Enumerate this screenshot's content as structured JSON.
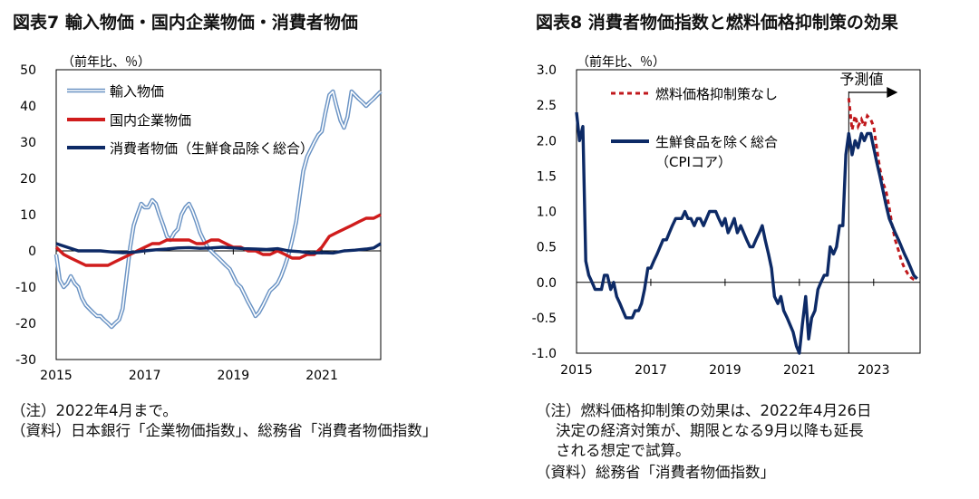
{
  "chart_data": [
    {
      "type": "line",
      "title": "図表7 輸入物価・国内企業物価・消費者物価",
      "unit_label": "（前年比、％）",
      "ylim": [
        -30,
        50
      ],
      "yticks": [
        50,
        40,
        30,
        20,
        10,
        0,
        -10,
        -20,
        -30
      ],
      "xlim": [
        2015.0,
        2022.33
      ],
      "xticks": [
        2015,
        2017,
        2019,
        2021
      ],
      "series": [
        {
          "name": "輸入物価",
          "color": "#6a93c4",
          "style": "double",
          "x": [
            2015.0,
            2015.08,
            2015.17,
            2015.25,
            2015.33,
            2015.42,
            2015.5,
            2015.58,
            2015.67,
            2015.75,
            2015.83,
            2015.92,
            2016.0,
            2016.08,
            2016.17,
            2016.25,
            2016.33,
            2016.42,
            2016.5,
            2016.58,
            2016.67,
            2016.75,
            2016.83,
            2016.92,
            2017.0,
            2017.08,
            2017.17,
            2017.25,
            2017.33,
            2017.42,
            2017.5,
            2017.58,
            2017.67,
            2017.75,
            2017.83,
            2017.92,
            2018.0,
            2018.08,
            2018.17,
            2018.25,
            2018.33,
            2018.42,
            2018.5,
            2018.58,
            2018.67,
            2018.75,
            2018.83,
            2018.92,
            2019.0,
            2019.08,
            2019.17,
            2019.25,
            2019.33,
            2019.42,
            2019.5,
            2019.58,
            2019.67,
            2019.75,
            2019.83,
            2019.92,
            2020.0,
            2020.08,
            2020.17,
            2020.25,
            2020.33,
            2020.42,
            2020.5,
            2020.58,
            2020.67,
            2020.75,
            2020.83,
            2020.92,
            2021.0,
            2021.08,
            2021.17,
            2021.25,
            2021.33,
            2021.42,
            2021.5,
            2021.58,
            2021.67,
            2021.75,
            2021.83,
            2021.92,
            2022.0,
            2022.08,
            2022.17,
            2022.25,
            2022.33
          ],
          "values": [
            -1,
            -8,
            -10,
            -9,
            -7,
            -9,
            -10,
            -13,
            -15,
            -16,
            -17,
            -18,
            -18,
            -19,
            -20,
            -21,
            -20,
            -19,
            -16,
            -8,
            1,
            7,
            10,
            13,
            12,
            12,
            14,
            13,
            10,
            7,
            4,
            3,
            5,
            6,
            10,
            12,
            13,
            11,
            8,
            5,
            3,
            1,
            0,
            -1,
            -2,
            -3,
            -4,
            -5,
            -7,
            -9,
            -10,
            -12,
            -14,
            -16,
            -18,
            -17,
            -15,
            -13,
            -11,
            -10,
            -9,
            -7,
            -4,
            -1,
            3,
            8,
            15,
            22,
            26,
            28,
            30,
            32,
            33,
            38,
            43,
            44,
            40,
            36,
            34,
            37,
            44,
            43,
            42,
            41,
            40,
            41,
            42,
            43,
            44
          ]
        },
        {
          "name": "国内企業物価",
          "color": "#d01c1c",
          "style": "thick",
          "x": [
            2015.0,
            2015.17,
            2015.33,
            2015.5,
            2015.67,
            2015.83,
            2016.0,
            2016.17,
            2016.33,
            2016.5,
            2016.67,
            2016.83,
            2017.0,
            2017.17,
            2017.33,
            2017.5,
            2017.67,
            2017.83,
            2018.0,
            2018.17,
            2018.33,
            2018.5,
            2018.67,
            2018.83,
            2019.0,
            2019.17,
            2019.33,
            2019.5,
            2019.67,
            2019.83,
            2020.0,
            2020.17,
            2020.33,
            2020.5,
            2020.67,
            2020.83,
            2021.0,
            2021.17,
            2021.33,
            2021.5,
            2021.67,
            2021.83,
            2022.0,
            2022.17,
            2022.33
          ],
          "values": [
            1,
            -1,
            -2,
            -3,
            -4,
            -4,
            -4,
            -4,
            -3,
            -2,
            -1,
            0,
            1,
            2,
            2,
            3,
            3,
            3,
            3,
            2,
            2,
            3,
            3,
            2,
            1,
            1,
            0,
            0,
            -1,
            -1,
            0,
            -1,
            -2,
            -2,
            -1,
            -1,
            1,
            4,
            5,
            6,
            7,
            8,
            9,
            9,
            10
          ]
        },
        {
          "name": "消費者物価（生鮮食品除く総合）",
          "color": "#0d2a66",
          "style": "thick",
          "x": [
            2015.0,
            2015.25,
            2015.5,
            2015.75,
            2016.0,
            2016.25,
            2016.5,
            2016.75,
            2017.0,
            2017.25,
            2017.5,
            2017.75,
            2018.0,
            2018.25,
            2018.5,
            2018.75,
            2019.0,
            2019.25,
            2019.5,
            2019.75,
            2020.0,
            2020.25,
            2020.5,
            2020.75,
            2021.0,
            2021.25,
            2021.5,
            2021.75,
            2022.0,
            2022.17,
            2022.33
          ],
          "values": [
            2,
            1,
            0,
            0,
            0,
            -0.3,
            -0.5,
            -0.4,
            0,
            0.3,
            0.5,
            0.8,
            0.9,
            0.7,
            0.8,
            1,
            0.8,
            0.6,
            0.5,
            0.4,
            0.6,
            0,
            -0.2,
            -0.6,
            -0.5,
            -0.6,
            0,
            0.2,
            0.5,
            0.8,
            2
          ]
        }
      ]
    },
    {
      "type": "line",
      "title": "図表8 消費者物価指数と燃料価格抑制策の効果",
      "unit_label": "（前年比、％）",
      "ylim": [
        -1.0,
        3.0
      ],
      "yticks": [
        "3.0",
        "2.5",
        "2.0",
        "1.5",
        "1.0",
        "0.5",
        "0.0",
        "-0.5",
        "-1.0"
      ],
      "xlim": [
        2015.0,
        2024.25
      ],
      "xticks": [
        2015,
        2017,
        2019,
        2021,
        2023
      ],
      "forecast_label": "予測値",
      "forecast_start": 2022.33,
      "series": [
        {
          "name": "燃料価格抑制策なし",
          "color": "#c0181c",
          "style": "dashed",
          "x": [
            2022.33,
            2022.42,
            2022.5,
            2022.58,
            2022.67,
            2022.75,
            2022.83,
            2022.92,
            2023.0,
            2023.08,
            2023.17,
            2023.25,
            2023.33,
            2023.42,
            2023.5,
            2023.58,
            2023.67,
            2023.75,
            2023.83,
            2023.92,
            2024.0,
            2024.08,
            2024.17
          ],
          "values": [
            2.6,
            2.15,
            2.35,
            2.2,
            2.3,
            2.2,
            2.35,
            2.3,
            2.2,
            1.9,
            1.6,
            1.4,
            1.3,
            1.05,
            0.8,
            0.6,
            0.45,
            0.3,
            0.2,
            0.12,
            0.07,
            0.04,
            0.02
          ]
        },
        {
          "name": "生鮮食品を除く総合（CPIコア）",
          "color": "#0d2a66",
          "style": "thick",
          "x": [
            2015.0,
            2015.08,
            2015.17,
            2015.25,
            2015.33,
            2015.42,
            2015.5,
            2015.58,
            2015.67,
            2015.75,
            2015.83,
            2015.92,
            2016.0,
            2016.08,
            2016.17,
            2016.25,
            2016.33,
            2016.42,
            2016.5,
            2016.58,
            2016.67,
            2016.75,
            2016.83,
            2016.92,
            2017.0,
            2017.08,
            2017.17,
            2017.25,
            2017.33,
            2017.42,
            2017.5,
            2017.58,
            2017.67,
            2017.75,
            2017.83,
            2017.92,
            2018.0,
            2018.08,
            2018.17,
            2018.25,
            2018.33,
            2018.42,
            2018.5,
            2018.58,
            2018.67,
            2018.75,
            2018.83,
            2018.92,
            2019.0,
            2019.08,
            2019.17,
            2019.25,
            2019.33,
            2019.42,
            2019.5,
            2019.58,
            2019.67,
            2019.75,
            2019.83,
            2019.92,
            2020.0,
            2020.08,
            2020.17,
            2020.25,
            2020.33,
            2020.42,
            2020.5,
            2020.58,
            2020.67,
            2020.75,
            2020.83,
            2020.92,
            2021.0,
            2021.08,
            2021.17,
            2021.25,
            2021.33,
            2021.42,
            2021.5,
            2021.58,
            2021.67,
            2021.75,
            2021.83,
            2021.92,
            2022.0,
            2022.08,
            2022.17,
            2022.25,
            2022.33,
            2022.42,
            2022.5,
            2022.58,
            2022.67,
            2022.75,
            2022.83,
            2022.92,
            2023.0,
            2023.08,
            2023.17,
            2023.25,
            2023.33,
            2023.42,
            2023.5,
            2023.58,
            2023.67,
            2023.75,
            2023.83,
            2023.92,
            2024.0,
            2024.08,
            2024.17
          ],
          "values": [
            2.4,
            2.0,
            2.2,
            0.3,
            0.1,
            0.0,
            -0.1,
            -0.1,
            -0.1,
            0.1,
            0.1,
            -0.1,
            0.0,
            -0.2,
            -0.3,
            -0.4,
            -0.5,
            -0.5,
            -0.5,
            -0.4,
            -0.4,
            -0.3,
            -0.1,
            0.2,
            0.2,
            0.3,
            0.4,
            0.5,
            0.6,
            0.6,
            0.7,
            0.8,
            0.9,
            0.9,
            0.9,
            1.0,
            0.9,
            0.9,
            0.8,
            0.9,
            0.9,
            0.8,
            0.9,
            1.0,
            1.0,
            1.0,
            0.9,
            0.8,
            0.9,
            0.7,
            0.8,
            0.9,
            0.7,
            0.8,
            0.7,
            0.6,
            0.5,
            0.5,
            0.6,
            0.7,
            0.8,
            0.6,
            0.4,
            0.2,
            -0.2,
            -0.3,
            -0.2,
            -0.4,
            -0.5,
            -0.6,
            -0.7,
            -0.9,
            -1.0,
            -0.6,
            -0.2,
            -0.8,
            -0.5,
            -0.4,
            -0.1,
            0.0,
            0.1,
            0.1,
            0.5,
            0.4,
            0.5,
            0.8,
            0.8,
            1.8,
            2.1,
            1.8,
            2.0,
            1.9,
            2.1,
            2.0,
            2.1,
            2.1,
            1.9,
            1.7,
            1.5,
            1.3,
            1.1,
            0.9,
            0.8,
            0.7,
            0.6,
            0.5,
            0.4,
            0.3,
            0.2,
            0.1,
            0.05
          ]
        }
      ]
    }
  ],
  "notes": {
    "left": [
      "（注）2022年4月まで。",
      "（資料）日本銀行「企業物価指数」、総務省「消費者物価指数」"
    ],
    "right": [
      "（注）燃料価格抑制策の効果は、2022年4月26日",
      "決定の経済対策が、期限となる9月以降も延長",
      "される想定で試算。",
      "（資料）総務省「消費者物価指数」"
    ]
  }
}
